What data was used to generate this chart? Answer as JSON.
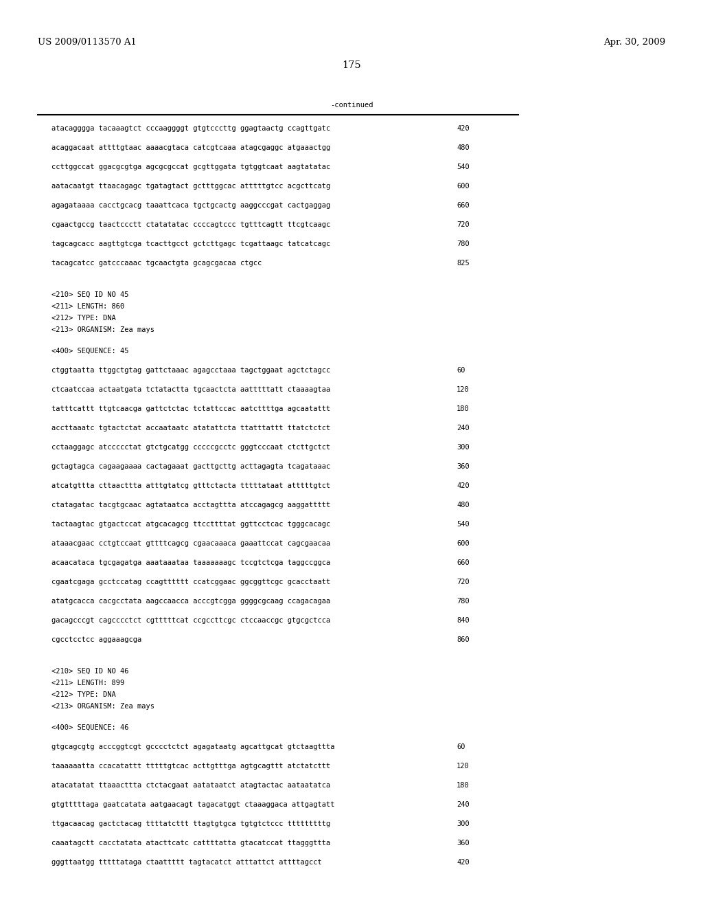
{
  "header_left": "US 2009/0113570 A1",
  "header_right": "Apr. 30, 2009",
  "page_number": "175",
  "continued_label": "-continued",
  "background_color": "#ffffff",
  "text_color": "#000000",
  "font_size_header": 9.5,
  "font_size_body": 7.5,
  "font_size_page": 10.5,
  "continued_lines": [
    [
      "atacagggga tacaaagtct cccaaggggt gtgtcccttg ggagtaactg ccagttgatc",
      "420"
    ],
    [
      "acaggacaat attttgtaac aaaacgtaca catcgtcaaa atagcgaggc atgaaactgg",
      "480"
    ],
    [
      "ccttggccat ggacgcgtga agcgcgccat gcgttggata tgtggtcaat aagtatatac",
      "540"
    ],
    [
      "aatacaatgt ttaacagagc tgatagtact gctttggcac atttttgtcc acgcttcatg",
      "600"
    ],
    [
      "agagataaaa cacctgcacg taaattcaca tgctgcactg aaggcccgat cactgaggag",
      "660"
    ],
    [
      "cgaactgccg taactccctt ctatatatac ccccagtccc tgtttcagtt ttcgtcaagc",
      "720"
    ],
    [
      "tagcagcacc aagttgtcga tcacttgcct gctcttgagc tcgattaagc tatcatcagc",
      "780"
    ],
    [
      "tacagcatcc gatcccaaac tgcaactgta gcagcgacaa ctgcc",
      "825"
    ]
  ],
  "seq45_info": [
    "<210> SEQ ID NO 45",
    "<211> LENGTH: 860",
    "<212> TYPE: DNA",
    "<213> ORGANISM: Zea mays"
  ],
  "seq45_seq_label": "<400> SEQUENCE: 45",
  "seq45_lines": [
    [
      "ctggtaatta ttggctgtag gattctaaac agagcctaaa tagctggaat agctctagcc",
      "60"
    ],
    [
      "ctcaatccaa actaatgata tctatactta tgcaactcta aatttttatt ctaaaagtaa",
      "120"
    ],
    [
      "tatttcattt ttgtcaacga gattctctac tctattccac aatcttttga agcaatattt",
      "180"
    ],
    [
      "accttaaatc tgtactctat accaataatc atatattcta ttatttattt ttatctctct",
      "240"
    ],
    [
      "cctaaggagc atccccctat gtctgcatgg cccccgcctc gggtcccaat ctcttgctct",
      "300"
    ],
    [
      "gctagtagca cagaagaaaa cactagaaat gacttgcttg acttagagta tcagataaac",
      "360"
    ],
    [
      "atcatgttta cttaacttta atttgtatcg gtttctacta tttttataat atttttgtct",
      "420"
    ],
    [
      "ctatagatac tacgtgcaac agtataatca acctagttta atccagagcg aaggattttt",
      "480"
    ],
    [
      "tactaagtac gtgactccat atgcacagcg ttccttttat ggttcctcac tgggcacagc",
      "540"
    ],
    [
      "ataaacgaac cctgtccaat gttttcagcg cgaacaaaca gaaattccat cagcgaacaa",
      "600"
    ],
    [
      "acaacataca tgcgagatga aaataaataa taaaaaaagc tccgtctcga taggccggca",
      "660"
    ],
    [
      "cgaatcgaga gcctccatag ccagtttttt ccatcggaac ggcggttcgc gcacctaatt",
      "720"
    ],
    [
      "atatgcacca cacgcctata aagccaacca acccgtcgga ggggcgcaag ccagacagaa",
      "780"
    ],
    [
      "gacagcccgt cagcccctct cgtttttcat ccgccttcgc ctccaaccgc gtgcgctcca",
      "840"
    ],
    [
      "cgcctcctcc aggaaagcga",
      "860"
    ]
  ],
  "seq46_info": [
    "<210> SEQ ID NO 46",
    "<211> LENGTH: 899",
    "<212> TYPE: DNA",
    "<213> ORGANISM: Zea mays"
  ],
  "seq46_seq_label": "<400> SEQUENCE: 46",
  "seq46_lines": [
    [
      "gtgcagcgtg acccggtcgt gcccctctct agagataatg agcattgcat gtctaagttta",
      "60"
    ],
    [
      "taaaaaatta ccacatattt tttttgtcac acttgtttga agtgcagttt atctatcttt",
      "120"
    ],
    [
      "atacatatat ttaaacttta ctctacgaat aatataatct atagtactac aataatatca",
      "180"
    ],
    [
      "gtgtttttaga gaatcatata aatgaacagt tagacatggt ctaaaggaca attgagtatt",
      "240"
    ],
    [
      "ttgacaacag gactctacag ttttatcttt ttagtgtgca tgtgtctccc tttttttttg",
      "300"
    ],
    [
      "caaatagctt cacctatata atacttcatc cattttatta gtacatccat ttagggttta",
      "360"
    ],
    [
      "gggttaatgg tttttataga ctaattttt tagtacatct atttattct attttagcct",
      "420"
    ]
  ]
}
